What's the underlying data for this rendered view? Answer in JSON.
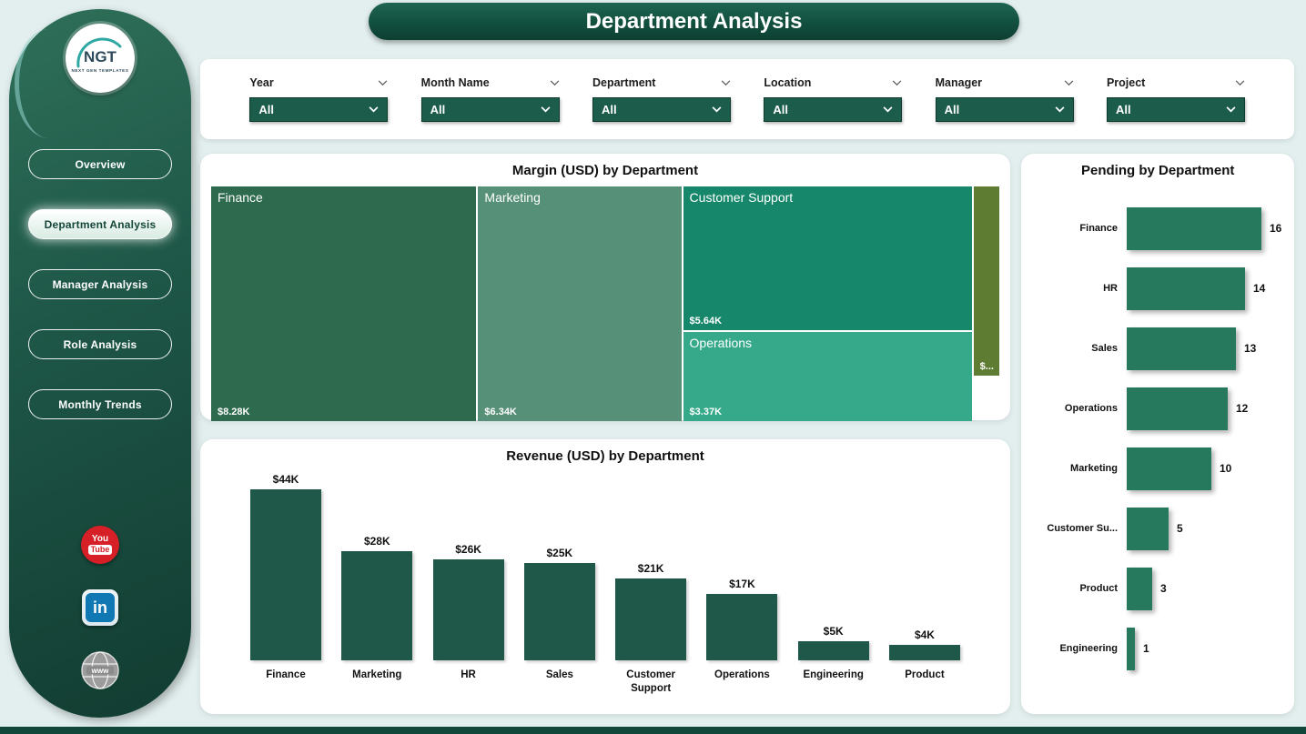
{
  "page_title": "Department Analysis",
  "theme": {
    "banner_green": "#124f3e",
    "sidebar_green": "#1d5546",
    "filter_select_green": "#1c5c4a",
    "background": "#e2efee"
  },
  "sidebar": {
    "logo_text": "NGT",
    "logo_subtext": "NEXT GEN TEMPLATES",
    "items": [
      {
        "label": "Overview",
        "active": false
      },
      {
        "label": "Department Analysis",
        "active": true
      },
      {
        "label": "Manager Analysis",
        "active": false
      },
      {
        "label": "Role Analysis",
        "active": false
      },
      {
        "label": "Monthly Trends",
        "active": false
      }
    ],
    "social": {
      "youtube": {
        "line1": "You",
        "line2": "Tube"
      },
      "linkedin": "in",
      "website": "www"
    }
  },
  "filters": [
    {
      "label": "Year",
      "value": "All"
    },
    {
      "label": "Month Name",
      "value": "All"
    },
    {
      "label": "Department",
      "value": "All"
    },
    {
      "label": "Location",
      "value": "All"
    },
    {
      "label": "Manager",
      "value": "All"
    },
    {
      "label": "Project",
      "value": "All"
    }
  ],
  "chart_data": [
    {
      "type": "treemap",
      "title": "Margin (USD) by Department",
      "items": [
        {
          "label": "Finance",
          "value_label": "$8.28K",
          "value": 8.28,
          "color": "#2d6a4e",
          "col": 0
        },
        {
          "label": "Marketing",
          "value_label": "$6.34K",
          "value": 6.34,
          "color": "#579078",
          "col": 1
        },
        {
          "label": "Customer Support",
          "value_label": "$5.64K",
          "value": 5.64,
          "color": "#16876a",
          "col": 2
        },
        {
          "label": "Operations",
          "value_label": "$3.37K",
          "value": 3.37,
          "color": "#36a98a",
          "col": 2
        },
        {
          "label": "",
          "value_label": "$...",
          "value": 0.8,
          "color": "#5f7c33",
          "col": 3
        }
      ]
    },
    {
      "type": "bar",
      "title": "Revenue (USD) by Department",
      "categories": [
        "Finance",
        "Marketing",
        "HR",
        "Sales",
        "Customer Support",
        "Operations",
        "Engineering",
        "Product"
      ],
      "values": [
        44,
        28,
        26,
        25,
        21,
        17,
        5,
        4
      ],
      "labels": [
        "$44K",
        "$28K",
        "$26K",
        "$25K",
        "$21K",
        "$17K",
        "$5K",
        "$4K"
      ],
      "bar_color": "#1f5848",
      "ylim": [
        0,
        44
      ]
    },
    {
      "type": "bar_horizontal",
      "title": "Pending by Department",
      "categories": [
        "Finance",
        "HR",
        "Sales",
        "Operations",
        "Marketing",
        "Customer Su...",
        "Product",
        "Engineering"
      ],
      "values": [
        16,
        14,
        13,
        12,
        10,
        5,
        3,
        1
      ],
      "labels": [
        "16",
        "14",
        "13",
        "12",
        "10",
        "5",
        "3",
        "1"
      ],
      "bar_color": "#27795d",
      "xlim": [
        0,
        16
      ]
    }
  ]
}
